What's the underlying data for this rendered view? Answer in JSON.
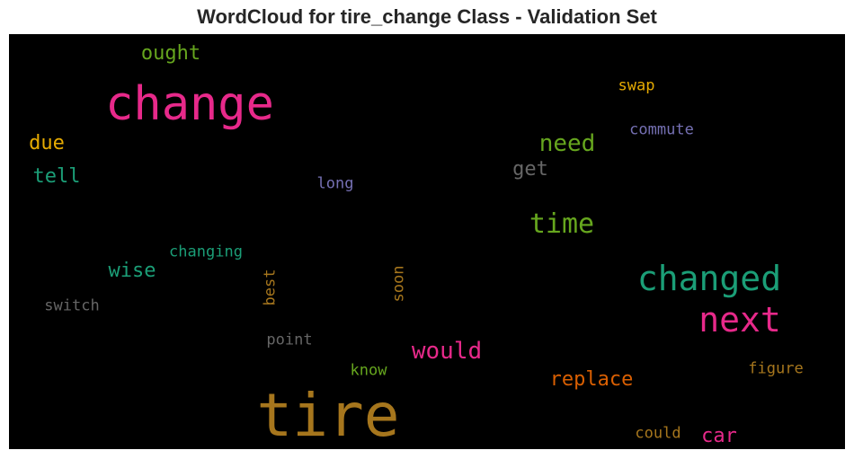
{
  "chart_data": {
    "type": "wordcloud",
    "title": "WordCloud for tire_change Class - Validation Set",
    "background": "#000000",
    "words": [
      {
        "text": "tire",
        "color": "#a6761d",
        "orientation": "horizontal"
      },
      {
        "text": "change",
        "color": "#e7298a",
        "orientation": "horizontal"
      },
      {
        "text": "changed",
        "color": "#1b9e77",
        "orientation": "horizontal"
      },
      {
        "text": "next",
        "color": "#e7298a",
        "orientation": "horizontal"
      },
      {
        "text": "time",
        "color": "#66a61e",
        "orientation": "horizontal"
      },
      {
        "text": "need",
        "color": "#66a61e",
        "orientation": "horizontal"
      },
      {
        "text": "would",
        "color": "#e7298a",
        "orientation": "horizontal"
      },
      {
        "text": "replace",
        "color": "#d95f02",
        "orientation": "horizontal"
      },
      {
        "text": "ought",
        "color": "#66a61e",
        "orientation": "horizontal"
      },
      {
        "text": "get",
        "color": "#666666",
        "orientation": "horizontal"
      },
      {
        "text": "due",
        "color": "#e6ab02",
        "orientation": "horizontal"
      },
      {
        "text": "tell",
        "color": "#1b9e77",
        "orientation": "horizontal"
      },
      {
        "text": "wise",
        "color": "#1b9e77",
        "orientation": "horizontal"
      },
      {
        "text": "car",
        "color": "#e7298a",
        "orientation": "horizontal"
      },
      {
        "text": "changing",
        "color": "#1b9e77",
        "orientation": "horizontal"
      },
      {
        "text": "swap",
        "color": "#e6ab02",
        "orientation": "horizontal"
      },
      {
        "text": "commute",
        "color": "#7570b3",
        "orientation": "horizontal"
      },
      {
        "text": "long",
        "color": "#7570b3",
        "orientation": "horizontal"
      },
      {
        "text": "best",
        "color": "#a6761d",
        "orientation": "vertical"
      },
      {
        "text": "soon",
        "color": "#a6761d",
        "orientation": "vertical"
      },
      {
        "text": "switch",
        "color": "#666666",
        "orientation": "horizontal"
      },
      {
        "text": "point",
        "color": "#666666",
        "orientation": "horizontal"
      },
      {
        "text": "know",
        "color": "#66a61e",
        "orientation": "horizontal"
      },
      {
        "text": "figure",
        "color": "#a6761d",
        "orientation": "horizontal"
      },
      {
        "text": "could",
        "color": "#a6761d",
        "orientation": "horizontal"
      }
    ]
  }
}
